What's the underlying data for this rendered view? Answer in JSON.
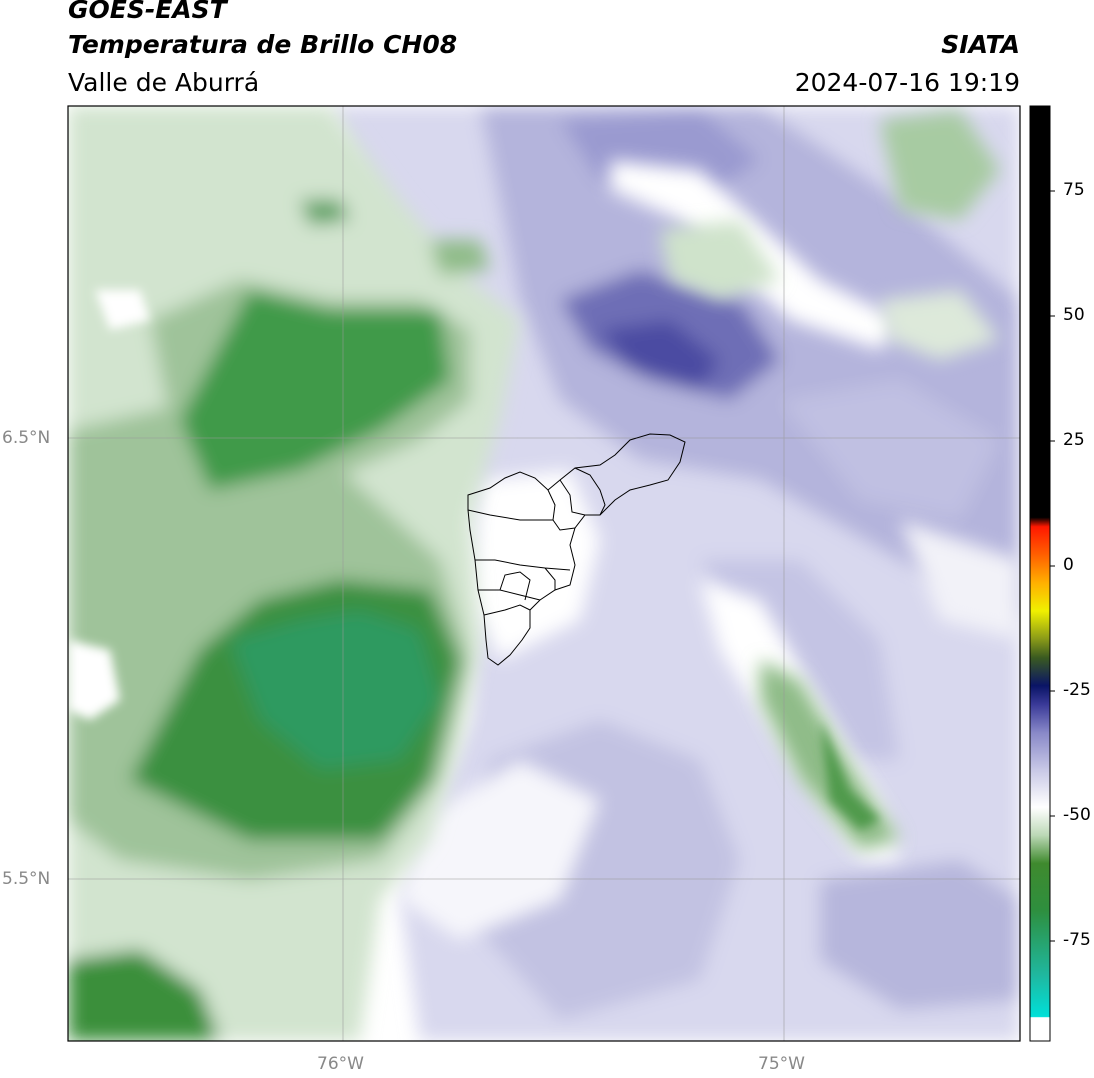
{
  "header": {
    "satellite": "GOES-EAST",
    "product": "Temperatura de Brillo CH08",
    "region": "Valle de Aburrá",
    "agency": "SIATA",
    "datetime": "2024-07-16 19:19"
  },
  "map": {
    "lat_ticks": [
      "6.5°N",
      "5.5°N"
    ],
    "lon_ticks": [
      "76°W",
      "75°W"
    ],
    "colors": {
      "green_dark": "#2f8a2f",
      "green_mid": "#6aa56a",
      "green_light": "#c9e0c6",
      "purple_light": "#d6d6ec",
      "purple_mid": "#a4a4d2",
      "purple_dark": "#5a5aa8",
      "background": "#ffffff"
    }
  },
  "colorbar": {
    "tick_labels": [
      "75",
      "50",
      "25",
      "0",
      "-25",
      "-50",
      "-75"
    ],
    "tick_values": [
      75,
      50,
      25,
      0,
      -25,
      -50,
      -75
    ],
    "range": [
      -95,
      92
    ]
  }
}
